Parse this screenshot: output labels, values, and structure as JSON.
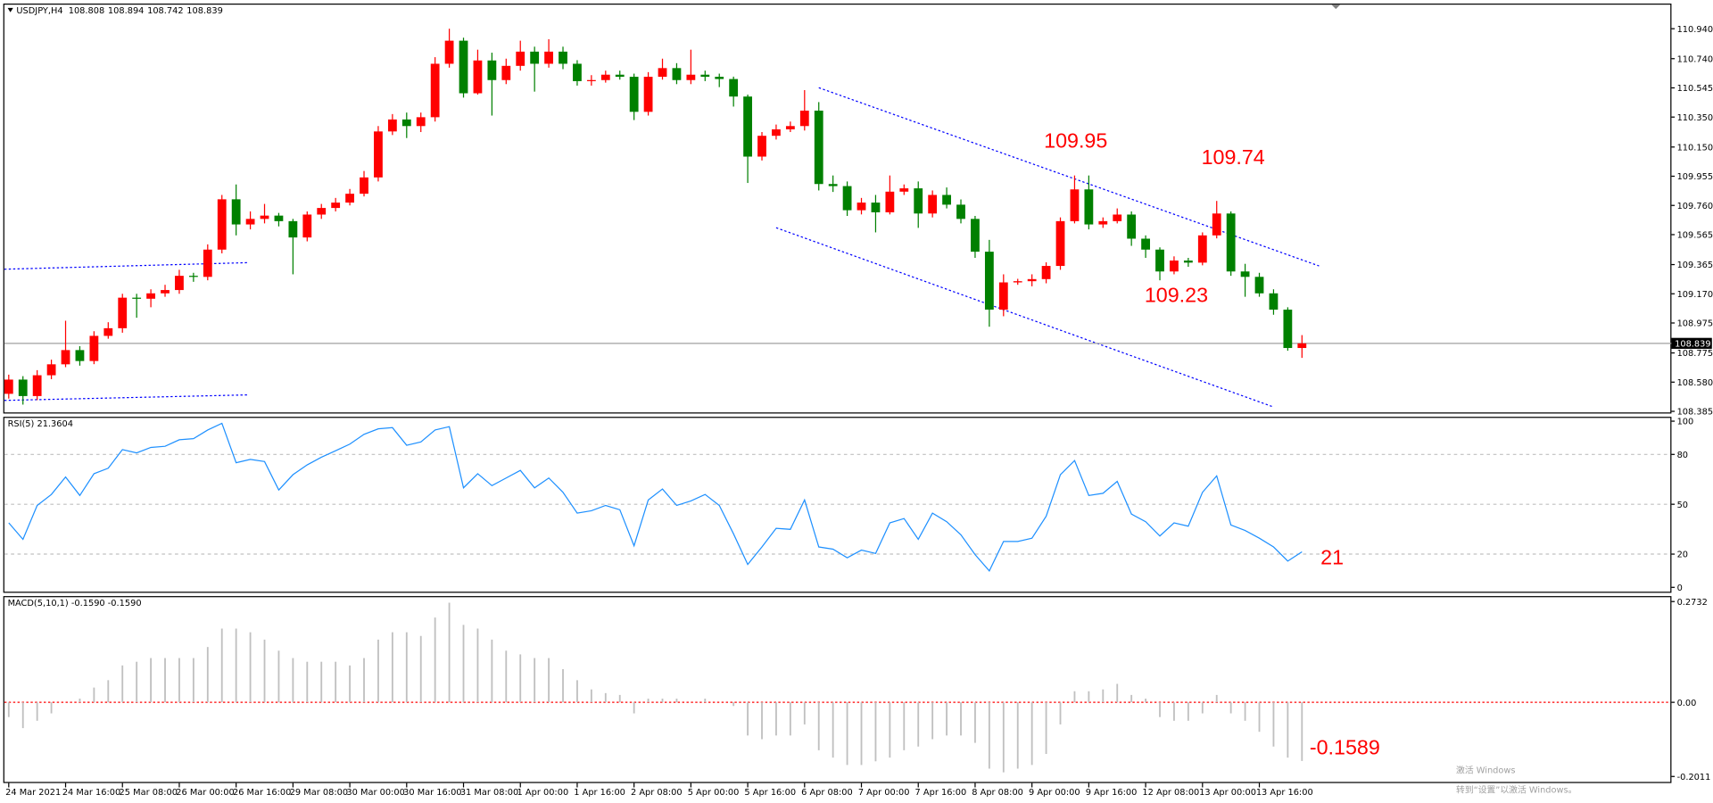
{
  "chart_data": [
    {
      "type": "candlestick",
      "title": "USDJPY,H4",
      "up_color": "#ff0000",
      "down_color": "#008000",
      "categories": [
        "24 Mar 2021",
        null,
        null,
        null,
        "24 Mar 16:00",
        null,
        null,
        null,
        "25 Mar 08:00",
        null,
        null,
        null,
        "26 Mar 00:00",
        null,
        null,
        null,
        "26 Mar 16:00",
        null,
        null,
        null,
        "29 Mar 08:00",
        null,
        null,
        null,
        "30 Mar 00:00",
        null,
        null,
        null,
        "30 Mar 16:00",
        null,
        null,
        null,
        "31 Mar 08:00",
        null,
        null,
        null,
        "1 Apr 00:00",
        null,
        null,
        null,
        "1 Apr 16:00",
        null,
        null,
        null,
        "2 Apr 08:00",
        null,
        null,
        null,
        "5 Apr 00:00",
        null,
        null,
        null,
        "5 Apr 16:00",
        null,
        null,
        null,
        "6 Apr 08:00",
        null,
        null,
        null,
        "7 Apr 00:00",
        null,
        null,
        null,
        "7 Apr 16:00",
        null,
        null,
        null,
        "8 Apr 08:00",
        null,
        null,
        null,
        "9 Apr 00:00",
        null,
        null,
        null,
        "9 Apr 16:00",
        null,
        null,
        null,
        "12 Apr 08:00",
        null,
        null,
        null,
        "13 Apr 00:00",
        null,
        null,
        null,
        "13 Apr 16:00",
        null,
        null,
        null
      ],
      "open": [
        108.502,
        108.597,
        108.487,
        108.626,
        108.699,
        108.794,
        108.721,
        108.889,
        108.94,
        109.144,
        109.137,
        109.173,
        109.195,
        109.29,
        109.283,
        109.465,
        109.801,
        109.633,
        109.67,
        109.692,
        109.655,
        109.546,
        109.699,
        109.743,
        109.779,
        109.838,
        109.947,
        110.254,
        110.334,
        110.29,
        110.349,
        110.706,
        110.86,
        110.509,
        110.728,
        110.597,
        110.692,
        110.787,
        110.706,
        110.787,
        110.706,
        110.59,
        110.597,
        110.633,
        110.619,
        110.385,
        110.619,
        110.677,
        110.597,
        110.633,
        110.619,
        110.604,
        110.487,
        110.086,
        110.225,
        110.268,
        110.29,
        110.393,
        109.903,
        109.889,
        109.728,
        109.779,
        109.714,
        109.852,
        109.874,
        109.706,
        109.83,
        109.765,
        109.67,
        109.451,
        109.064,
        109.246,
        109.254,
        109.268,
        109.356,
        109.655,
        109.867,
        109.633,
        109.655,
        109.699,
        109.538,
        109.465,
        109.319,
        109.392,
        109.378,
        109.56,
        109.706,
        109.319,
        109.283,
        109.173,
        109.064,
        108.808
      ],
      "high": [
        108.63,
        108.62,
        108.66,
        108.73,
        108.99,
        108.82,
        108.92,
        108.98,
        109.17,
        109.17,
        109.2,
        109.23,
        109.33,
        109.31,
        109.5,
        109.83,
        109.9,
        109.72,
        109.77,
        109.71,
        109.67,
        109.72,
        109.77,
        109.81,
        109.87,
        109.99,
        110.29,
        110.37,
        110.38,
        110.38,
        110.75,
        110.94,
        110.88,
        110.8,
        110.78,
        110.74,
        110.86,
        110.82,
        110.87,
        110.82,
        110.73,
        110.63,
        110.66,
        110.66,
        110.64,
        110.65,
        110.74,
        110.71,
        110.8,
        110.66,
        110.64,
        110.62,
        110.5,
        110.25,
        110.3,
        110.32,
        110.53,
        110.45,
        109.96,
        109.92,
        109.81,
        109.83,
        109.96,
        109.9,
        109.92,
        109.86,
        109.88,
        109.8,
        109.69,
        109.53,
        109.3,
        109.27,
        109.3,
        109.38,
        109.68,
        109.96,
        109.96,
        109.68,
        109.74,
        109.72,
        109.56,
        109.48,
        109.42,
        109.41,
        109.58,
        109.79,
        109.72,
        109.37,
        109.31,
        109.2,
        109.08,
        108.894
      ],
      "low": [
        108.47,
        108.43,
        108.46,
        108.6,
        108.68,
        108.69,
        108.7,
        108.87,
        108.91,
        109.01,
        109.08,
        109.15,
        109.17,
        109.25,
        109.26,
        109.44,
        109.56,
        109.6,
        109.64,
        109.62,
        109.3,
        109.52,
        109.67,
        109.72,
        109.76,
        109.82,
        109.92,
        110.23,
        110.21,
        110.25,
        110.32,
        110.68,
        110.48,
        110.5,
        110.36,
        110.57,
        110.66,
        110.52,
        110.68,
        110.67,
        110.56,
        110.56,
        110.58,
        110.6,
        110.33,
        110.36,
        110.6,
        110.57,
        110.57,
        110.59,
        110.55,
        110.42,
        109.91,
        110.06,
        110.2,
        110.25,
        110.26,
        109.86,
        109.85,
        109.69,
        109.7,
        109.58,
        109.7,
        109.83,
        109.61,
        109.68,
        109.74,
        109.64,
        109.41,
        108.95,
        109.02,
        109.23,
        109.22,
        109.24,
        109.33,
        109.64,
        109.6,
        109.61,
        109.64,
        109.49,
        109.41,
        109.26,
        109.3,
        109.35,
        109.36,
        109.54,
        109.29,
        109.15,
        109.15,
        109.03,
        108.79,
        108.742
      ],
      "close": [
        108.597,
        108.487,
        108.626,
        108.699,
        108.794,
        108.721,
        108.889,
        108.94,
        109.144,
        109.137,
        109.173,
        109.195,
        109.29,
        109.283,
        109.465,
        109.801,
        109.633,
        109.67,
        109.692,
        109.655,
        109.546,
        109.699,
        109.743,
        109.779,
        109.838,
        109.947,
        110.254,
        110.334,
        110.29,
        110.349,
        110.706,
        110.86,
        110.509,
        110.728,
        110.597,
        110.692,
        110.787,
        110.706,
        110.787,
        110.706,
        110.59,
        110.597,
        110.633,
        110.619,
        110.385,
        110.619,
        110.677,
        110.597,
        110.633,
        110.619,
        110.604,
        110.487,
        110.086,
        110.225,
        110.268,
        110.29,
        110.393,
        109.903,
        109.889,
        109.728,
        109.779,
        109.714,
        109.852,
        109.874,
        109.706,
        109.83,
        109.765,
        109.67,
        109.451,
        109.064,
        109.246,
        109.254,
        109.268,
        109.356,
        109.655,
        109.867,
        109.633,
        109.655,
        109.699,
        109.538,
        109.465,
        109.319,
        109.392,
        109.378,
        109.56,
        109.706,
        109.319,
        109.283,
        109.173,
        109.064,
        108.808,
        108.839
      ],
      "ylim": [
        108.385,
        110.94
      ],
      "yticks": [
        {
          "value": 110.94,
          "label": "110.940"
        },
        {
          "value": 110.74,
          "label": "110.740"
        },
        110.545,
        {
          "value": 110.35,
          "label": "110.350"
        },
        {
          "value": 110.15,
          "label": "110.150"
        },
        109.955,
        {
          "value": 109.76,
          "label": "109.760"
        },
        109.565,
        109.365,
        {
          "value": 109.17,
          "label": "109.170"
        },
        108.975,
        108.775,
        {
          "value": 108.58,
          "label": "108.580"
        },
        108.385
      ],
      "last_price": 108.839,
      "trendlines": [
        {
          "x": [
            57,
            92.2
          ],
          "y": [
            110.546,
            109.356
          ],
          "color": "#0000ff"
        },
        {
          "x": [
            54,
            89
          ],
          "y": [
            109.611,
            108.414
          ],
          "color": "#0000ff"
        },
        {
          "x": [
            -0.6,
            16.9
          ],
          "y": [
            109.334,
            109.378
          ],
          "color": "#0000ff"
        },
        {
          "x": [
            -0.6,
            16.9
          ],
          "y": [
            108.458,
            108.495
          ],
          "color": "#0000ff"
        }
      ],
      "annotations": [
        {
          "label": "109.95",
          "value": 109.95
        },
        {
          "label": "109.74",
          "value": 109.74
        },
        {
          "label": "109.23",
          "value": 109.23
        }
      ]
    },
    {
      "type": "line",
      "title": "RSI(5) 21.3604",
      "color": "#1e90ff",
      "values": [
        38.8,
        28.9,
        49.3,
        55.9,
        66.4,
        55.3,
        68.4,
        71.7,
        82.9,
        80.9,
        84.2,
        84.9,
        88.8,
        89.5,
        94.7,
        98.7,
        75.0,
        77.0,
        75.7,
        58.6,
        67.8,
        73.7,
        78.3,
        82.2,
        86.2,
        92.1,
        95.4,
        96.1,
        85.5,
        87.5,
        94.7,
        96.7,
        59.9,
        68.4,
        61.2,
        65.8,
        70.4,
        59.9,
        65.8,
        57.2,
        44.7,
        46.1,
        49.3,
        46.7,
        25.0,
        52.6,
        59.2,
        49.3,
        52.0,
        55.9,
        49.3,
        32.2,
        13.8,
        24.3,
        35.5,
        34.9,
        52.6,
        24.3,
        23.0,
        17.8,
        22.4,
        20.4,
        38.8,
        41.4,
        28.9,
        44.7,
        39.5,
        31.6,
        19.7,
        9.9,
        27.6,
        27.6,
        29.6,
        42.8,
        67.8,
        76.3,
        55.3,
        56.6,
        63.8,
        44.1,
        39.5,
        30.9,
        38.8,
        36.8,
        57.2,
        67.1,
        37.5,
        34.2,
        29.6,
        24.3,
        15.8,
        21.36
      ],
      "ylim": [
        0,
        100
      ],
      "yticks": [
        0,
        20,
        50,
        80,
        100
      ],
      "annotations": [
        {
          "label": "21",
          "value": 21
        }
      ]
    },
    {
      "type": "bar",
      "title": "MACD(5,10,1) -0.1590 -0.1590",
      "color": "#c0c0c0",
      "zero_color": "#ff0000",
      "values": [
        -0.04,
        -0.07,
        -0.05,
        -0.03,
        0.0,
        0.01,
        0.04,
        0.06,
        0.1,
        0.11,
        0.12,
        0.12,
        0.12,
        0.12,
        0.15,
        0.2,
        0.2,
        0.19,
        0.17,
        0.14,
        0.12,
        0.11,
        0.11,
        0.11,
        0.1,
        0.12,
        0.17,
        0.19,
        0.19,
        0.18,
        0.23,
        0.27,
        0.21,
        0.2,
        0.17,
        0.14,
        0.13,
        0.12,
        0.12,
        0.09,
        0.06,
        0.035,
        0.025,
        0.02,
        -0.03,
        0.01,
        0.01,
        0.01,
        0.0,
        0.01,
        0.0,
        -0.01,
        -0.09,
        -0.1,
        -0.09,
        -0.09,
        -0.06,
        -0.13,
        -0.15,
        -0.17,
        -0.17,
        -0.16,
        -0.15,
        -0.13,
        -0.12,
        -0.1,
        -0.09,
        -0.09,
        -0.11,
        -0.18,
        -0.19,
        -0.18,
        -0.17,
        -0.14,
        -0.06,
        0.03,
        0.03,
        0.035,
        0.05,
        0.02,
        0.01,
        -0.04,
        -0.05,
        -0.05,
        -0.03,
        0.02,
        -0.03,
        -0.05,
        -0.08,
        -0.12,
        -0.15,
        -0.159
      ],
      "ylim": [
        -0.2011,
        0.2732
      ],
      "yticks": [
        0.2732,
        {
          "value": 0,
          "label": "0.00"
        },
        -0.2011
      ],
      "annotations": [
        {
          "label": "-0.1589",
          "value": -0.1589
        }
      ]
    }
  ],
  "watermark": {
    "title": "激活 Windows",
    "subtitle": "转到“设置”以激活 Windows。"
  }
}
